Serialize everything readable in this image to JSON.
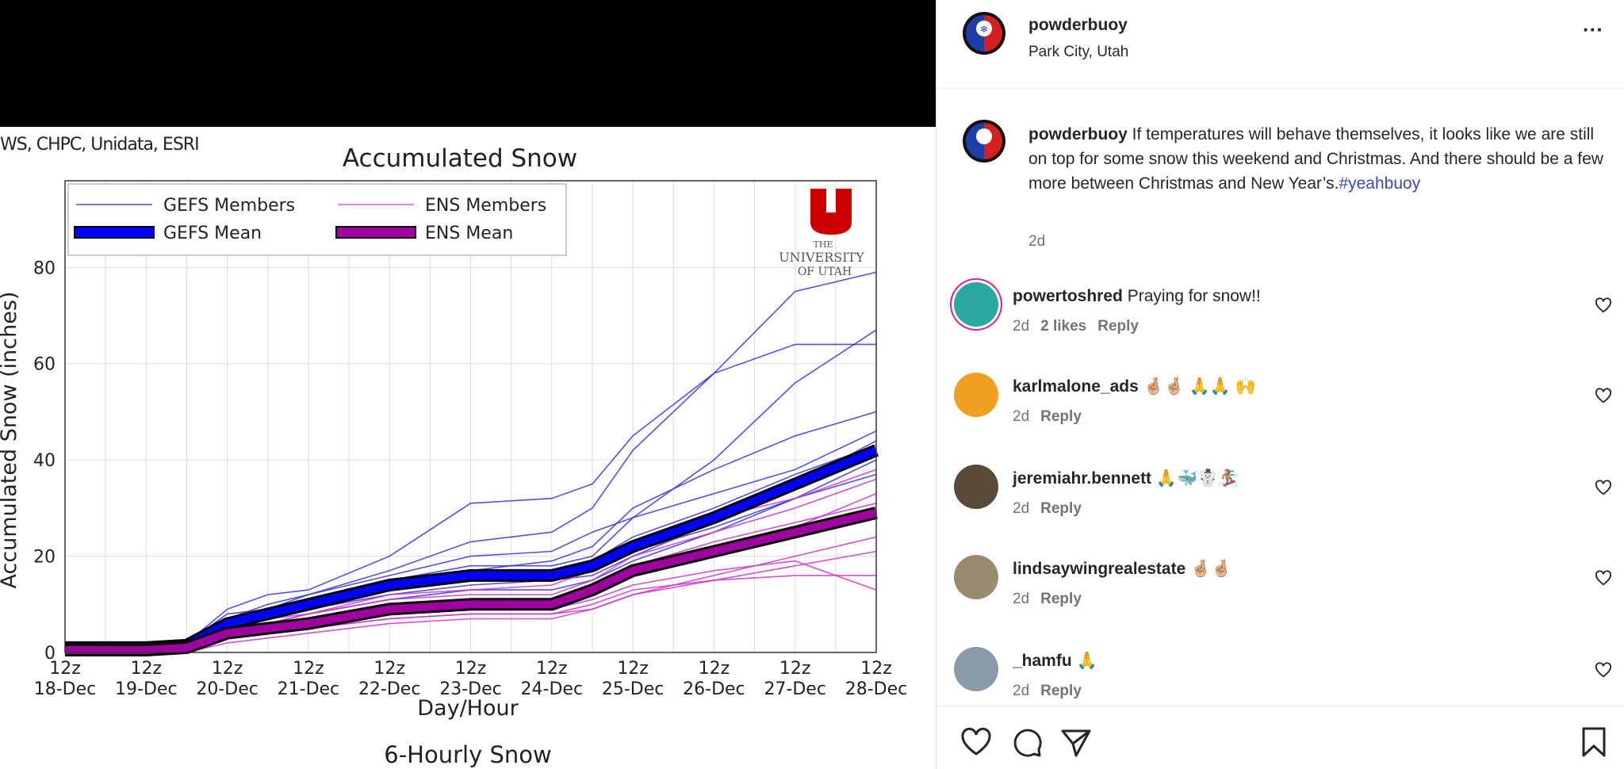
{
  "image": {
    "credits": "WS, CHPC, Unidata, ESRI",
    "logo_text": "THE UNIVERSITY OF UTAH"
  },
  "chart_data": {
    "type": "line",
    "title": "Accumulated Snow",
    "xlabel": "Day/Hour",
    "ylabel": "Accumulated Snow (inches)",
    "next_panel_title": "6-Hourly Snow",
    "x_tick_labels": [
      [
        "12z",
        "18-Dec"
      ],
      [
        "12z",
        "19-Dec"
      ],
      [
        "12z",
        "20-Dec"
      ],
      [
        "12z",
        "21-Dec"
      ],
      [
        "12z",
        "22-Dec"
      ],
      [
        "12z",
        "23-Dec"
      ],
      [
        "12z",
        "24-Dec"
      ],
      [
        "12z",
        "25-Dec"
      ],
      [
        "12z",
        "26-Dec"
      ],
      [
        "12z",
        "27-Dec"
      ],
      [
        "12z",
        "28-Dec"
      ]
    ],
    "x_days": [
      0,
      1,
      2,
      3,
      4,
      5,
      6,
      7,
      8,
      9,
      10
    ],
    "ylim": [
      0,
      98
    ],
    "yticks": [
      0,
      20,
      40,
      60,
      80
    ],
    "grid": true,
    "legend": {
      "placement": "top-left",
      "entries": [
        "GEFS Members",
        "ENS Members",
        "GEFS Mean",
        "ENS Mean"
      ]
    },
    "colors": {
      "gefs": "#3333dd",
      "ens": "#cc33cc",
      "gefs_mean": "#0000ff",
      "ens_mean": "#a000a0"
    },
    "x": [
      0,
      1,
      1.5,
      2,
      2.5,
      3,
      4,
      5,
      6,
      6.5,
      7,
      8,
      9,
      10
    ],
    "series": [
      {
        "name": "GEFS Mean",
        "values": [
          1,
          1,
          1.5,
          6,
          8,
          10,
          14,
          16,
          16,
          18,
          22,
          28,
          35,
          42
        ]
      },
      {
        "name": "ENS Mean",
        "values": [
          0.5,
          0.5,
          1,
          4,
          5,
          6,
          9,
          10,
          10,
          13,
          17,
          21,
          25,
          29
        ]
      },
      {
        "name": "GEFS Members",
        "members": [
          [
            1,
            1,
            2,
            9,
            12,
            13,
            20,
            31,
            32,
            35,
            45,
            58,
            64,
            64
          ],
          [
            1,
            1,
            2,
            7,
            10,
            12,
            17,
            23,
            25,
            30,
            42,
            58,
            75,
            79
          ],
          [
            1,
            1,
            1,
            6,
            8,
            10,
            15,
            18,
            18,
            20,
            28,
            40,
            56,
            67
          ],
          [
            1,
            1,
            2,
            8,
            9,
            11,
            14,
            17,
            19,
            22,
            30,
            38,
            45,
            50
          ],
          [
            1,
            1,
            1,
            5,
            7,
            9,
            12,
            14,
            15,
            16,
            20,
            27,
            35,
            44
          ],
          [
            1,
            1,
            1,
            4,
            6,
            8,
            11,
            13,
            13,
            15,
            19,
            25,
            32,
            40
          ],
          [
            1,
            1,
            2,
            7,
            9,
            12,
            16,
            20,
            21,
            25,
            28,
            33,
            38,
            46
          ],
          [
            1,
            1,
            1,
            5,
            7,
            9,
            13,
            15,
            15,
            17,
            21,
            26,
            32,
            37
          ],
          [
            1,
            1,
            1,
            6,
            8,
            11,
            15,
            17,
            17,
            19,
            24,
            30,
            37,
            43
          ]
        ]
      },
      {
        "name": "ENS Members",
        "members": [
          [
            0,
            0,
            1,
            4,
            5,
            6,
            9,
            10,
            10,
            13,
            17,
            22,
            26,
            33
          ],
          [
            0,
            0,
            1,
            3,
            4,
            5,
            7,
            8,
            8,
            9,
            12,
            16,
            20,
            24
          ],
          [
            0,
            0,
            1,
            5,
            6,
            8,
            11,
            12,
            12,
            15,
            20,
            25,
            30,
            36
          ],
          [
            0,
            0,
            0,
            2,
            3,
            4,
            6,
            7,
            7,
            9,
            12,
            15,
            18,
            21
          ],
          [
            0,
            0,
            1,
            4,
            5,
            6,
            8,
            9,
            9,
            11,
            14,
            17,
            19,
            13
          ],
          [
            0,
            0,
            1,
            6,
            7,
            8,
            12,
            13,
            14,
            17,
            22,
            28,
            32,
            38
          ],
          [
            0,
            0,
            0,
            3,
            4,
            5,
            7,
            8,
            8,
            10,
            13,
            15,
            16,
            16
          ],
          [
            0,
            0,
            1,
            4,
            5,
            7,
            10,
            11,
            11,
            14,
            18,
            23,
            27,
            31
          ]
        ]
      }
    ]
  },
  "post": {
    "username": "powderbuoy",
    "location": "Park City, Utah",
    "more": "···",
    "caption_user": "powderbuoy",
    "caption_text": " If temperatures will behave themselves, it looks like we are still on top for some snow this weekend and Christmas. And there should be a few more between Christmas and New Year’s.",
    "hashtag": "#yeahbuoy",
    "caption_time": "2d",
    "comments": [
      {
        "user": "powertoshred",
        "text": " Praying for snow!!",
        "time": "2d",
        "likes": "2 likes",
        "reply": "Reply"
      },
      {
        "user": "karlmalone_ads",
        "text": " 🤞🏼🤞🏼 🙏🙏 🙌",
        "time": "2d",
        "likes": "",
        "reply": "Reply"
      },
      {
        "user": "jeremiahr.bennett",
        "text": " 🙏🐳☃️🏂",
        "time": "2d",
        "likes": "",
        "reply": "Reply"
      },
      {
        "user": "lindsaywingrealestate",
        "text": " 🤞🏼🤞🏼",
        "time": "2d",
        "likes": "",
        "reply": "Reply"
      },
      {
        "user": "_hamfu",
        "text": " 🙏",
        "time": "2d",
        "likes": "",
        "reply": "Reply"
      }
    ]
  }
}
